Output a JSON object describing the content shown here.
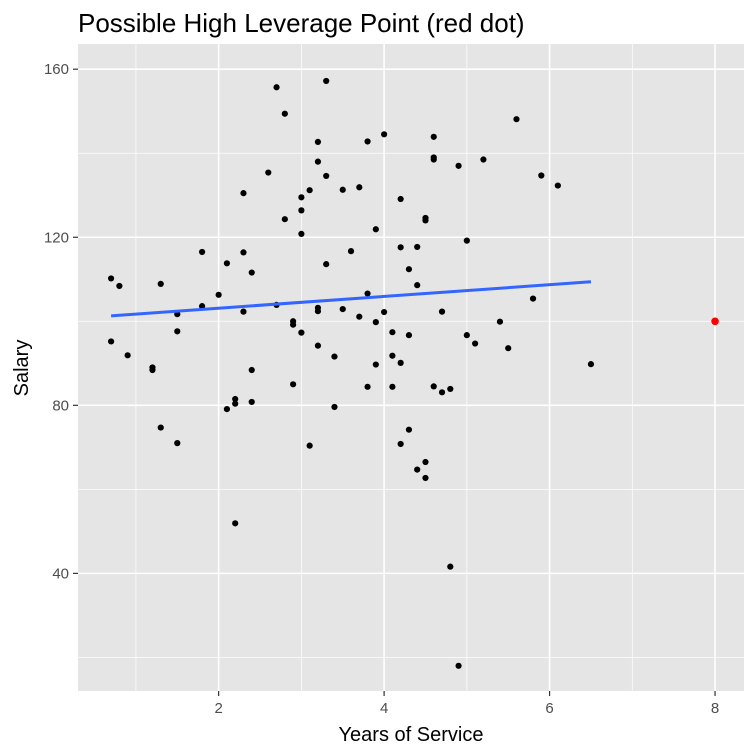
{
  "chart_data": {
    "type": "scatter",
    "title": "Possible High Leverage Point (red dot)",
    "xlabel": "Years of Service",
    "ylabel": "Salary",
    "xlim": [
      0.3,
      8.35
    ],
    "ylim": [
      12,
      166
    ],
    "x_ticks": [
      2,
      4,
      6,
      8
    ],
    "y_ticks": [
      40,
      80,
      120,
      160
    ],
    "grid": true,
    "legend": "none",
    "colors": {
      "panel": "#e5e5e5",
      "grid": "#ffffff",
      "points": "#000000",
      "high_leverage_point": "#ff0000",
      "fit_line": "#3366ff"
    },
    "series": [
      {
        "points": [
          [
            0.7,
            110.2
          ],
          [
            0.8,
            108.4
          ],
          [
            0.7,
            95.2
          ],
          [
            0.9,
            91.9
          ],
          [
            1.2,
            89.0
          ],
          [
            1.2,
            88.4
          ],
          [
            1.3,
            108.9
          ],
          [
            1.3,
            74.7
          ],
          [
            1.5,
            101.7
          ],
          [
            1.5,
            97.6
          ],
          [
            1.5,
            71.0
          ],
          [
            1.8,
            116.5
          ],
          [
            1.8,
            103.6
          ],
          [
            2.0,
            106.3
          ],
          [
            2.1,
            113.8
          ],
          [
            2.1,
            79.1
          ],
          [
            2.2,
            81.5
          ],
          [
            2.2,
            80.4
          ],
          [
            2.2,
            51.9
          ],
          [
            2.3,
            130.5
          ],
          [
            2.3,
            116.4
          ],
          [
            2.3,
            102.3
          ],
          [
            2.4,
            111.6
          ],
          [
            2.4,
            88.4
          ],
          [
            2.4,
            80.8
          ],
          [
            2.6,
            135.4
          ],
          [
            2.7,
            155.7
          ],
          [
            2.7,
            103.9
          ],
          [
            2.8,
            149.4
          ],
          [
            2.8,
            124.3
          ],
          [
            2.9,
            100.0
          ],
          [
            2.9,
            99.2
          ],
          [
            2.9,
            85.0
          ],
          [
            3.0,
            129.5
          ],
          [
            3.0,
            126.4
          ],
          [
            3.0,
            120.8
          ],
          [
            3.0,
            97.3
          ],
          [
            3.1,
            131.2
          ],
          [
            3.1,
            70.4
          ],
          [
            3.2,
            142.7
          ],
          [
            3.2,
            138.0
          ],
          [
            3.2,
            103.2
          ],
          [
            3.2,
            102.4
          ],
          [
            3.2,
            94.2
          ],
          [
            3.3,
            157.2
          ],
          [
            3.3,
            134.6
          ],
          [
            3.3,
            113.6
          ],
          [
            3.4,
            91.6
          ],
          [
            3.4,
            79.6
          ],
          [
            3.5,
            131.3
          ],
          [
            3.5,
            102.9
          ],
          [
            3.6,
            116.7
          ],
          [
            3.7,
            131.9
          ],
          [
            3.7,
            101.1
          ],
          [
            3.8,
            142.8
          ],
          [
            3.8,
            106.6
          ],
          [
            3.8,
            84.4
          ],
          [
            3.9,
            121.9
          ],
          [
            3.9,
            99.8
          ],
          [
            3.9,
            89.7
          ],
          [
            4.0,
            144.5
          ],
          [
            4.0,
            102.2
          ],
          [
            4.1,
            97.4
          ],
          [
            4.1,
            91.8
          ],
          [
            4.1,
            84.4
          ],
          [
            4.2,
            129.1
          ],
          [
            4.2,
            117.6
          ],
          [
            4.2,
            90.1
          ],
          [
            4.2,
            70.8
          ],
          [
            4.3,
            112.4
          ],
          [
            4.3,
            96.7
          ],
          [
            4.3,
            74.2
          ],
          [
            4.4,
            117.7
          ],
          [
            4.4,
            108.6
          ],
          [
            4.4,
            64.7
          ],
          [
            4.5,
            124.6
          ],
          [
            4.5,
            124.0
          ],
          [
            4.5,
            66.5
          ],
          [
            4.5,
            62.7
          ],
          [
            4.6,
            143.9
          ],
          [
            4.6,
            139.0
          ],
          [
            4.6,
            138.5
          ],
          [
            4.6,
            84.5
          ],
          [
            4.7,
            102.3
          ],
          [
            4.7,
            83.1
          ],
          [
            4.8,
            83.9
          ],
          [
            4.8,
            41.6
          ],
          [
            4.9,
            137.0
          ],
          [
            4.9,
            18.0
          ],
          [
            5.0,
            119.2
          ],
          [
            5.0,
            96.7
          ],
          [
            5.1,
            94.7
          ],
          [
            5.2,
            138.5
          ],
          [
            5.4,
            99.9
          ],
          [
            5.5,
            93.6
          ],
          [
            5.6,
            148.1
          ],
          [
            5.8,
            105.4
          ],
          [
            5.9,
            134.7
          ],
          [
            6.1,
            132.3
          ],
          [
            6.5,
            89.8
          ]
        ]
      },
      {
        "points": [
          [
            8.0,
            100.0
          ]
        ]
      }
    ],
    "fit_line": {
      "x": [
        0.7,
        6.5
      ],
      "y": [
        101.3,
        109.4
      ]
    }
  }
}
